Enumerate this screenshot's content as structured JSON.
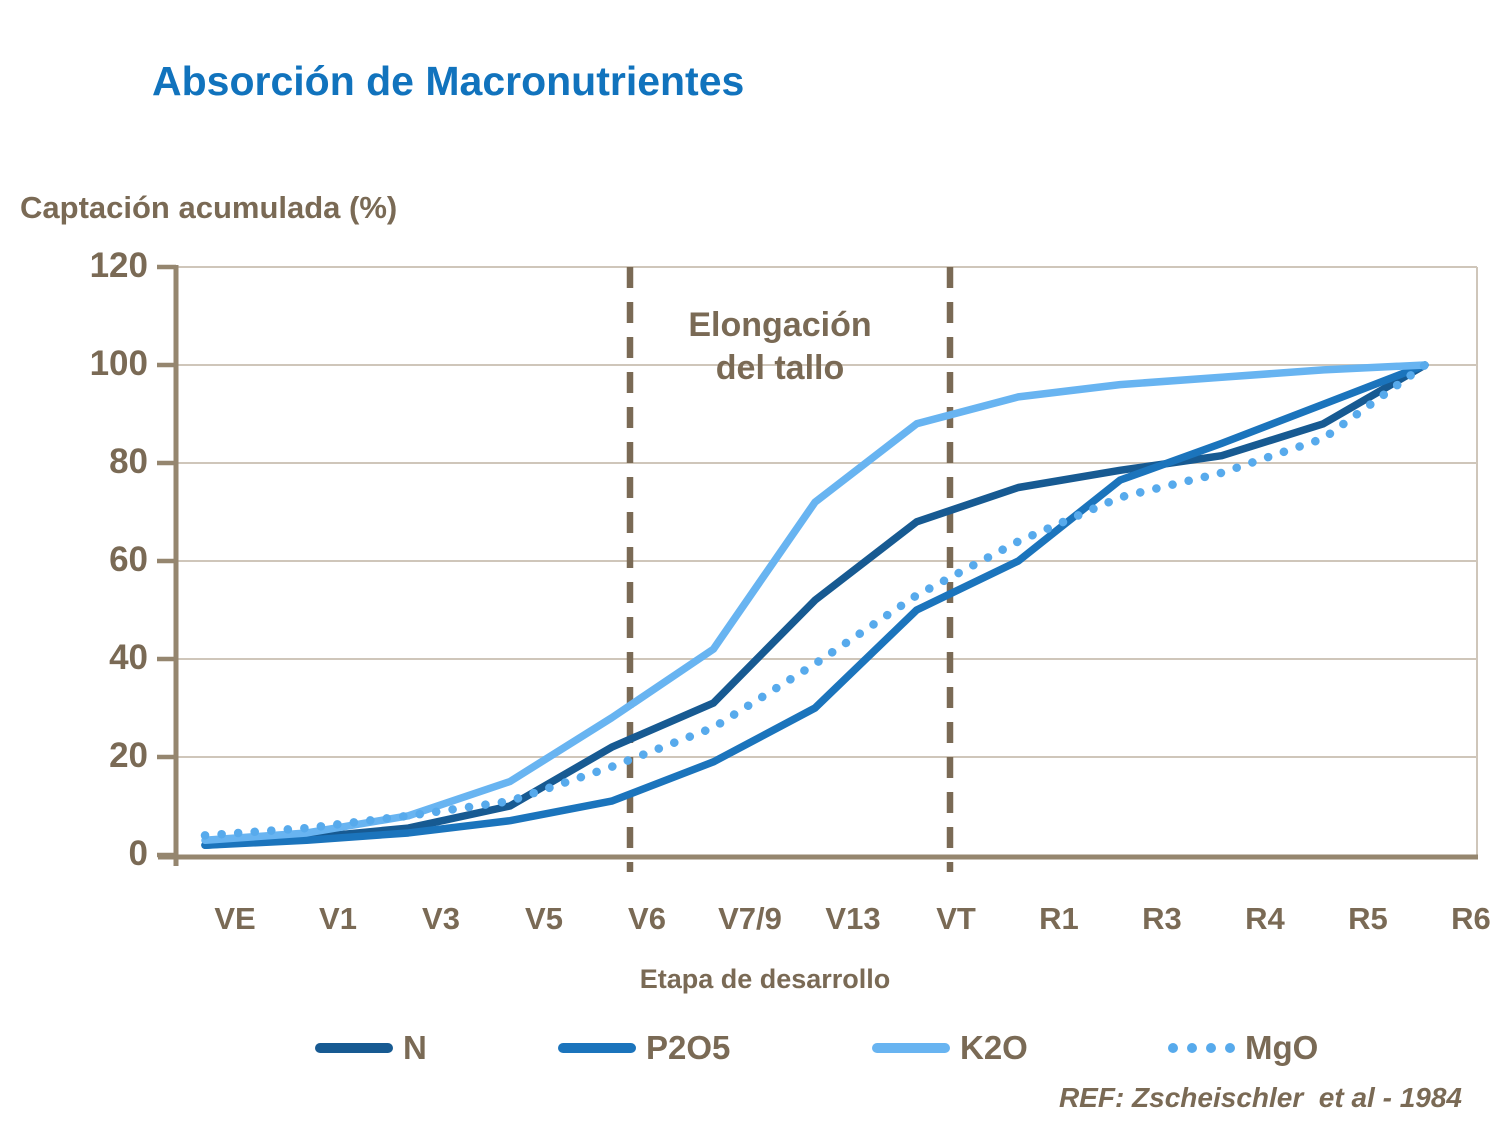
{
  "slide": {
    "title": "Absorción de Macronutrientes",
    "reference": "REF: Zscheischler  et al - 1984"
  },
  "chart_data": {
    "type": "line",
    "y_axis_title": "Captación acumulada (%)",
    "x_axis_title": "Etapa de desarrollo",
    "categories": [
      "VE",
      "V1",
      "V3",
      "V5",
      "V6",
      "V7/9",
      "V13",
      "VT",
      "R1",
      "R3",
      "R4",
      "R5",
      "R6"
    ],
    "y_ticks": [
      0,
      20,
      40,
      60,
      80,
      100,
      120
    ],
    "ylim": [
      0,
      120
    ],
    "grid": "horizontal",
    "legend_position": "bottom",
    "series": [
      {
        "name": "N",
        "style": "solid",
        "color": "#175a92",
        "values": [
          2,
          3.5,
          5.5,
          10,
          22,
          31,
          52,
          68,
          75,
          78.5,
          81.5,
          88,
          100
        ]
      },
      {
        "name": "P2O5",
        "style": "solid",
        "color": "#1b74bc",
        "values": [
          2,
          3,
          4.5,
          7,
          11,
          19,
          30,
          50,
          60,
          76.5,
          84,
          92,
          100
        ]
      },
      {
        "name": "K2O",
        "style": "solid",
        "color": "#68b4f1",
        "values": [
          3,
          4.5,
          8,
          15,
          28,
          42,
          72,
          88,
          93.5,
          96,
          97.5,
          99,
          100
        ]
      },
      {
        "name": "MgO",
        "style": "dotted",
        "color": "#57aaec",
        "values": [
          4,
          5.5,
          8,
          11,
          18,
          26,
          39,
          53,
          64,
          73,
          78,
          85,
          100
        ]
      }
    ],
    "annotation": {
      "lines": [
        "Elongación",
        "del tallo"
      ],
      "dashed_lines_between": [
        "V6",
        "VT"
      ]
    }
  },
  "colors": {
    "title_blue": "#1173bd",
    "text_brown": "#7a6a55",
    "axis_brown": "#95866f",
    "grid_gray": "#cfc6ba"
  }
}
